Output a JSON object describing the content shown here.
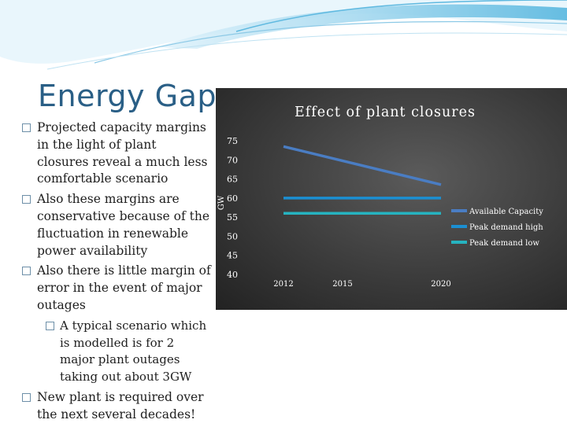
{
  "slide": {
    "title": "Energy Gap",
    "bullets": [
      {
        "level": 1,
        "text": "Projected capacity margins in the light of plant closures reveal a much less comfortable scenario"
      },
      {
        "level": 1,
        "text": "Also these margins are conservative because of the fluctuation in renewable power availability"
      },
      {
        "level": 1,
        "text": "Also there is little margin of error in the event of major outages"
      },
      {
        "level": 2,
        "text": "A typical scenario which is modelled is for 2 major plant outages taking out about 3GW"
      },
      {
        "level": 1,
        "text": "New plant is required over the next several  decades!"
      }
    ]
  },
  "chart_data": {
    "type": "line",
    "title": "Effect of plant closures",
    "xlabel": "",
    "ylabel": "GW",
    "categories": [
      "2012",
      "2015",
      "2020"
    ],
    "x": [
      2012,
      2020
    ],
    "ylim": [
      40,
      75
    ],
    "yticks": [
      75,
      70,
      65,
      60,
      55,
      50,
      45,
      40
    ],
    "grid": false,
    "legend_position": "right",
    "series": [
      {
        "name": "Available Capacity",
        "x": [
          2012,
          2020
        ],
        "values": [
          73.5,
          63.5
        ],
        "color": "#4a7dc3"
      },
      {
        "name": "Peak demand high",
        "x": [
          2012,
          2020
        ],
        "values": [
          60,
          60
        ],
        "color": "#1b8fd2"
      },
      {
        "name": "Peak demand low",
        "x": [
          2012,
          2020
        ],
        "values": [
          56,
          56
        ],
        "color": "#26b3c0"
      }
    ]
  }
}
